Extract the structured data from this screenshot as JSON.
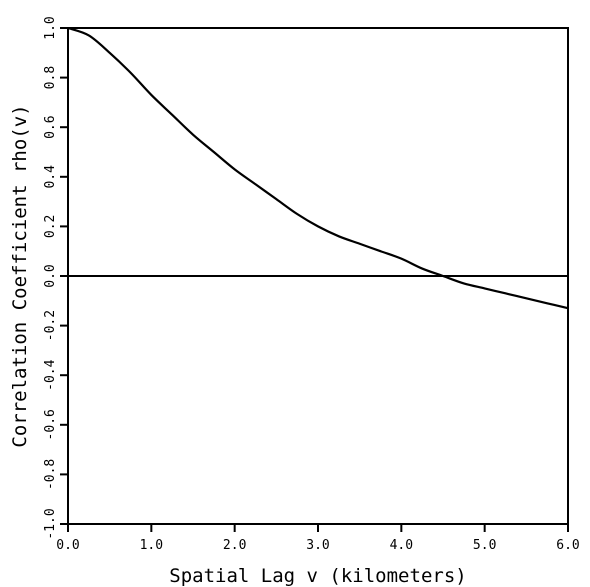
{
  "chart_data": {
    "type": "line",
    "title": "",
    "xlabel": "Spatial Lag v (kilometers)",
    "ylabel": "Correlation Coefficient rho(v)",
    "xlim": [
      0.0,
      6.0
    ],
    "ylim": [
      -1.0,
      1.0
    ],
    "grid": false,
    "legend": "none",
    "x_ticks": [
      "0.0",
      "1.0",
      "2.0",
      "3.0",
      "4.0",
      "5.0",
      "6.0"
    ],
    "y_ticks": [
      "-1.0",
      "-0.8",
      "-0.6",
      "-0.4",
      "-0.2",
      "0.0",
      "0.2",
      "0.4",
      "0.6",
      "0.8",
      "1.0"
    ],
    "reference_line_y": 0.0,
    "series": [
      {
        "x": [
          0.0,
          0.25,
          0.5,
          0.75,
          1.0,
          1.25,
          1.5,
          1.75,
          2.0,
          2.25,
          2.5,
          2.75,
          3.0,
          3.25,
          3.5,
          3.75,
          4.0,
          4.25,
          4.5,
          4.75,
          5.0,
          5.25,
          5.5,
          5.75,
          6.0
        ],
        "y": [
          1.0,
          0.97,
          0.9,
          0.82,
          0.73,
          0.65,
          0.57,
          0.5,
          0.43,
          0.37,
          0.31,
          0.25,
          0.2,
          0.16,
          0.13,
          0.1,
          0.07,
          0.03,
          0.0,
          -0.03,
          -0.05,
          -0.07,
          -0.09,
          -0.11,
          -0.13
        ]
      }
    ]
  }
}
